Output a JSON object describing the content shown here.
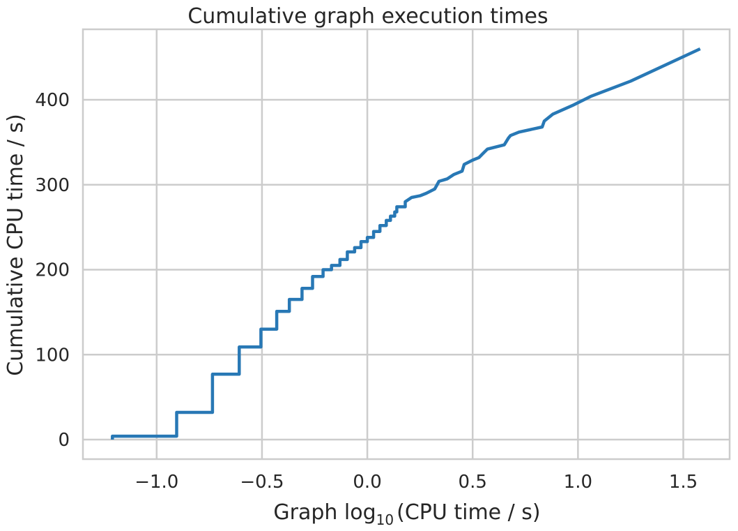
{
  "chart_data": {
    "type": "line",
    "title": "Cumulative graph execution times",
    "xlabel": {
      "prefix": "Graph log",
      "subscript": "10",
      "suffix": "(CPU time / s)"
    },
    "ylabel": "Cumulative CPU time / s)",
    "xlim": [
      -1.35,
      1.72
    ],
    "ylim": [
      -23,
      483
    ],
    "xticks": [
      -1.0,
      -0.5,
      0.0,
      0.5,
      1.0,
      1.5
    ],
    "xtick_labels": [
      "−1.0",
      "−0.5",
      "0.0",
      "0.5",
      "1.0",
      "1.5"
    ],
    "yticks": [
      0,
      100,
      200,
      300,
      400
    ],
    "ytick_labels": [
      "0",
      "100",
      "200",
      "300",
      "400"
    ],
    "grid": true,
    "color": "#2878b5",
    "series": [
      {
        "x": [
          -1.21,
          -1.21,
          -0.905,
          -0.905,
          -0.735,
          -0.735,
          -0.608,
          -0.608,
          -0.505,
          -0.505,
          -0.43,
          -0.43,
          -0.37,
          -0.37,
          -0.31,
          -0.31,
          -0.26,
          -0.26,
          -0.21,
          -0.21,
          -0.17,
          -0.17,
          -0.13,
          -0.13,
          -0.095,
          -0.095,
          -0.06,
          -0.06,
          -0.03,
          -0.03,
          0.0,
          0.0,
          0.03,
          0.03,
          0.06,
          0.06,
          0.09,
          0.09,
          0.11,
          0.11,
          0.13,
          0.13,
          0.14,
          0.14,
          0.18,
          0.18,
          0.21,
          0.25,
          0.28,
          0.32,
          0.34,
          0.38,
          0.41,
          0.45,
          0.46,
          0.5,
          0.53,
          0.55,
          0.57,
          0.65,
          0.67,
          0.68,
          0.72,
          0.83,
          0.84,
          0.88,
          0.98,
          1.06,
          1.25,
          1.58
        ],
        "y": [
          0,
          4,
          4,
          32,
          32,
          77,
          77,
          109,
          109,
          130,
          130,
          151,
          151,
          165,
          165,
          178,
          178,
          192,
          192,
          200,
          200,
          205,
          205,
          212,
          212,
          221,
          221,
          226,
          226,
          233,
          233,
          238,
          238,
          245,
          245,
          252,
          252,
          258,
          258,
          263,
          263,
          268,
          268,
          274,
          274,
          280,
          285,
          287,
          290,
          295,
          304,
          307,
          312,
          316,
          324,
          329,
          332,
          337,
          342,
          347,
          355,
          358,
          362,
          368,
          375,
          383,
          394,
          404,
          422,
          460
        ]
      }
    ]
  }
}
